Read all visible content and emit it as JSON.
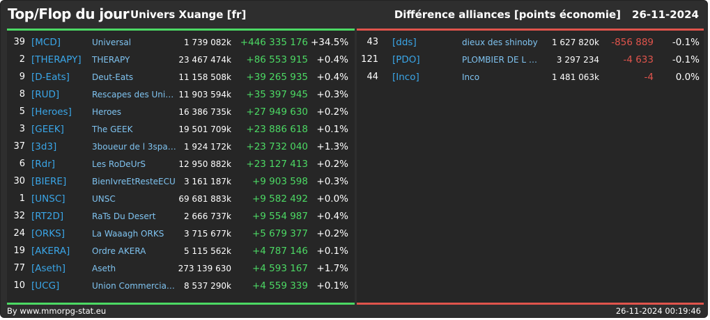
{
  "header": {
    "title": "Top/Flop du jour",
    "subtitle": "Univers Xuange [fr]",
    "right_label": "Différence alliances [points économie]",
    "date": "26-11-2024"
  },
  "colors": {
    "gain": "#4cd964",
    "loss": "#e0544c",
    "tag": "#3aa6e8",
    "name": "#7fc3f0",
    "background": "#2e2e2e"
  },
  "top": [
    {
      "rank": "39",
      "tag": "[MCD]",
      "name": "Universal",
      "points": "1 739 082k",
      "diff": "+446 335 176",
      "pct": "+34.5%"
    },
    {
      "rank": "2",
      "tag": "[THERAPY]",
      "name": "THERAPY",
      "points": "23 467 474k",
      "diff": "+86 553 915",
      "pct": "+0.4%"
    },
    {
      "rank": "9",
      "tag": "[D-Eats]",
      "name": "Deut-Eats",
      "points": "11 158 508k",
      "diff": "+39 265 935",
      "pct": "+0.4%"
    },
    {
      "rank": "8",
      "tag": "[RUD]",
      "name": "Rescapes des Univ...",
      "points": "11 903 594k",
      "diff": "+35 397 945",
      "pct": "+0.3%"
    },
    {
      "rank": "5",
      "tag": "[Heroes]",
      "name": "Heroes",
      "points": "16 386 735k",
      "diff": "+27 949 630",
      "pct": "+0.2%"
    },
    {
      "rank": "3",
      "tag": "[GEEK]",
      "name": "The GEEK",
      "points": "19 501 709k",
      "diff": "+23 886 618",
      "pct": "+0.1%"
    },
    {
      "rank": "37",
      "tag": "[3d3]",
      "name": "3boueur de l 3space",
      "points": "1 924 172k",
      "diff": "+23 732 040",
      "pct": "+1.3%"
    },
    {
      "rank": "6",
      "tag": "[Rdr]",
      "name": "Les RoDeUrS",
      "points": "12 950 882k",
      "diff": "+23 127 413",
      "pct": "+0.2%"
    },
    {
      "rank": "30",
      "tag": "[BIERE]",
      "name": "BienIvreEtResteECU",
      "points": "3 161 187k",
      "diff": "+9 903 598",
      "pct": "+0.3%"
    },
    {
      "rank": "1",
      "tag": "[UNSC]",
      "name": "UNSC",
      "points": "69 681 883k",
      "diff": "+9 582 492",
      "pct": "+0.0%"
    },
    {
      "rank": "32",
      "tag": "[RT2D]",
      "name": "RaTs Du Desert",
      "points": "2 666 737k",
      "diff": "+9 554 987",
      "pct": "+0.4%"
    },
    {
      "rank": "24",
      "tag": "[ORKS]",
      "name": "La Waaagh ORKS",
      "points": "3 715 677k",
      "diff": "+5 679 377",
      "pct": "+0.2%"
    },
    {
      "rank": "19",
      "tag": "[AKERA]",
      "name": "Ordre AKERA",
      "points": "5 115 562k",
      "diff": "+4 787 146",
      "pct": "+0.1%"
    },
    {
      "rank": "77",
      "tag": "[Aseth]",
      "name": "Aseth",
      "points": "273 139 630",
      "diff": "+4 593 167",
      "pct": "+1.7%"
    },
    {
      "rank": "10",
      "tag": "[UCG]",
      "name": "Union Commerciale...",
      "points": "8 537 290k",
      "diff": "+4 559 339",
      "pct": "+0.1%"
    }
  ],
  "flop": [
    {
      "rank": "43",
      "tag": "[dds]",
      "name": "dieux des shinoby",
      "points": "1 627 820k",
      "diff": "-856 889",
      "pct": "-0.1%"
    },
    {
      "rank": "121",
      "tag": "[PDO]",
      "name": "PLOMBIER DE L O...",
      "points": "3 297 234",
      "diff": "-4 633",
      "pct": "-0.1%"
    },
    {
      "rank": "44",
      "tag": "[Inco]",
      "name": "Inco",
      "points": "1 481 063k",
      "diff": "-4",
      "pct": "0.0%"
    }
  ],
  "footer": {
    "credit": "By www.mmorpg-stat.eu",
    "timestamp": "26-11-2024 00:19:46"
  }
}
